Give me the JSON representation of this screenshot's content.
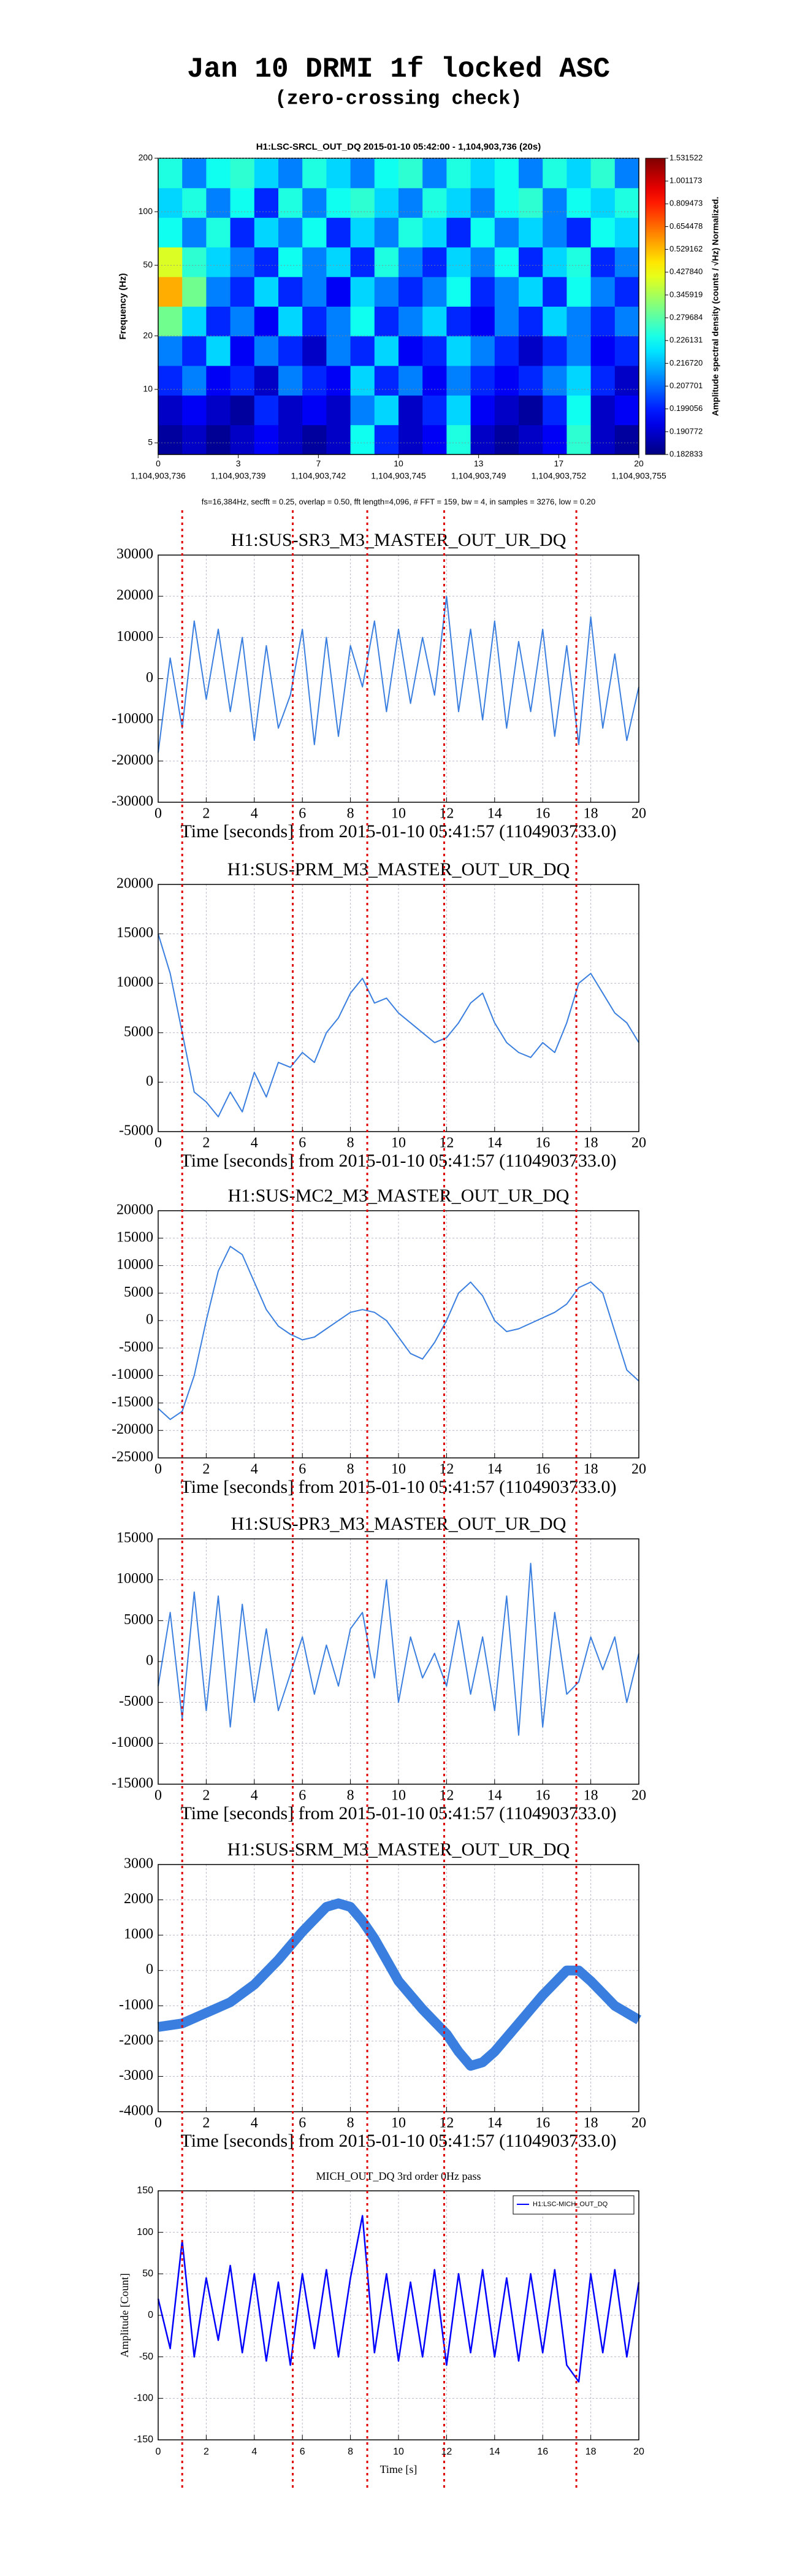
{
  "title": "Jan 10 DRMI 1f locked ASC",
  "subtitle": "(zero-crossing check)",
  "zero_crossings": [
    1.0,
    5.6,
    8.7,
    11.9,
    17.4
  ],
  "chart_data": [
    {
      "type": "heatmap",
      "title": "H1:LSC-SRCL_OUT_DQ 2015-01-10 05:42:00 - 1,104,903,736 (20s)",
      "ylabel": "Frequency (Hz)",
      "colorbar_label": "Amplitude spectral density (counts / √Hz) Normalized.",
      "note": "fs=16,384Hz, secfft = 0.25, overlap = 0.50, fft length=4,096, # FFT = 159, bw = 4, in samples = 3276, low = 0.20",
      "colormap": "jet",
      "ylog": true,
      "xlim": [
        0,
        20
      ],
      "ylim": [
        4.3,
        200
      ],
      "xticks": [
        0,
        {
          "value": 3.333,
          "label": "3"
        },
        {
          "value": 6.667,
          "label": "7"
        },
        10,
        {
          "value": 13.333,
          "label": "13"
        },
        {
          "value": 16.667,
          "label": "17"
        },
        20
      ],
      "xticks2": [
        {
          "value": 0,
          "label": "1,104,903,736"
        },
        {
          "value": 3.333,
          "label": "1,104,903,739"
        },
        {
          "value": 6.667,
          "label": "1,104,903,742"
        },
        {
          "value": 10,
          "label": "1,104,903,745"
        },
        {
          "value": 13.333,
          "label": "1,104,903,749"
        },
        {
          "value": 16.667,
          "label": "1,104,903,752"
        },
        {
          "value": 20,
          "label": "1,104,903,755"
        }
      ],
      "yticks": [
        5,
        10,
        20,
        50,
        100,
        200
      ],
      "zticks": [
        1.531522,
        1.001173,
        0.809473,
        0.654478,
        0.529162,
        0.42784,
        0.345919,
        0.279684,
        0.226131,
        0.21672,
        0.207701,
        0.199056,
        0.190772,
        0.182833
      ],
      "zlabels": [
        "1.531522",
        "1.001173",
        "0.809473",
        "0.654478",
        "0.529162",
        "0.427840",
        "0.345919",
        "0.279684",
        "0.226131",
        "0.216720",
        "0.207701",
        "0.199056",
        "0.190772",
        "0.182833"
      ],
      "values": [
        [
          0.186,
          0.19,
          0.185,
          0.19,
          0.195,
          0.19,
          0.186,
          0.19,
          0.23,
          0.2,
          0.19,
          0.195,
          0.24,
          0.19,
          0.186,
          0.19,
          0.195,
          0.25,
          0.19,
          0.186
        ],
        [
          0.19,
          0.195,
          0.19,
          0.186,
          0.2,
          0.19,
          0.195,
          0.19,
          0.21,
          0.22,
          0.19,
          0.2,
          0.22,
          0.195,
          0.19,
          0.186,
          0.2,
          0.23,
          0.19,
          0.195
        ],
        [
          0.2,
          0.21,
          0.195,
          0.2,
          0.19,
          0.21,
          0.2,
          0.195,
          0.22,
          0.2,
          0.21,
          0.195,
          0.21,
          0.2,
          0.195,
          0.2,
          0.21,
          0.22,
          0.2,
          0.19
        ],
        [
          0.21,
          0.2,
          0.22,
          0.195,
          0.21,
          0.2,
          0.19,
          0.21,
          0.2,
          0.22,
          0.195,
          0.2,
          0.22,
          0.21,
          0.2,
          0.19,
          0.2,
          0.21,
          0.195,
          0.2
        ],
        [
          0.3,
          0.22,
          0.2,
          0.21,
          0.195,
          0.22,
          0.2,
          0.21,
          0.23,
          0.2,
          0.21,
          0.22,
          0.2,
          0.195,
          0.21,
          0.2,
          0.22,
          0.21,
          0.2,
          0.21
        ],
        [
          0.55,
          0.3,
          0.21,
          0.2,
          0.22,
          0.2,
          0.21,
          0.195,
          0.22,
          0.21,
          0.2,
          0.21,
          0.23,
          0.2,
          0.21,
          0.22,
          0.2,
          0.23,
          0.21,
          0.2
        ],
        [
          0.4,
          0.25,
          0.22,
          0.21,
          0.2,
          0.23,
          0.21,
          0.22,
          0.2,
          0.24,
          0.21,
          0.2,
          0.22,
          0.21,
          0.23,
          0.2,
          0.22,
          0.24,
          0.2,
          0.21
        ],
        [
          0.23,
          0.21,
          0.24,
          0.2,
          0.22,
          0.21,
          0.23,
          0.2,
          0.22,
          0.21,
          0.24,
          0.22,
          0.2,
          0.23,
          0.21,
          0.22,
          0.21,
          0.2,
          0.23,
          0.22
        ],
        [
          0.22,
          0.24,
          0.21,
          0.23,
          0.2,
          0.24,
          0.21,
          0.23,
          0.25,
          0.22,
          0.21,
          0.24,
          0.22,
          0.21,
          0.23,
          0.25,
          0.21,
          0.23,
          0.22,
          0.24
        ],
        [
          0.24,
          0.21,
          0.23,
          0.25,
          0.22,
          0.21,
          0.24,
          0.22,
          0.21,
          0.23,
          0.25,
          0.21,
          0.24,
          0.22,
          0.23,
          0.21,
          0.24,
          0.22,
          0.25,
          0.21
        ]
      ]
    },
    {
      "type": "line",
      "title": "H1:SUS-SR3_M3_MASTER_OUT_UR_DQ",
      "xlabel": "Time [seconds] from 2015-01-10 05:41:57 (1104903733.0)",
      "color": "#3a7fe0",
      "grid": true,
      "xlim": [
        0,
        20
      ],
      "xticks": [
        0,
        2,
        4,
        6,
        8,
        10,
        12,
        14,
        16,
        18,
        20
      ],
      "ylim": [
        -30000,
        30000
      ],
      "yticks": [
        -30000,
        -20000,
        -10000,
        0,
        10000,
        20000,
        30000
      ],
      "x": [
        0,
        0.5,
        1,
        1.5,
        2,
        2.5,
        3,
        3.5,
        4,
        4.5,
        5,
        5.5,
        6,
        6.5,
        7,
        7.5,
        8,
        8.5,
        9,
        9.5,
        10,
        10.5,
        11,
        11.5,
        12,
        12.5,
        13,
        13.5,
        14,
        14.5,
        15,
        15.5,
        16,
        16.5,
        17,
        17.5,
        18,
        18.5,
        19,
        19.5,
        20
      ],
      "values": [
        -18000,
        5000,
        -12000,
        14000,
        -5000,
        12000,
        -8000,
        10000,
        -15000,
        8000,
        -12000,
        -4000,
        12000,
        -16000,
        10000,
        -14000,
        8000,
        -2000,
        14000,
        -8000,
        12000,
        -6000,
        10000,
        -4000,
        20000,
        -8000,
        12000,
        -10000,
        14000,
        -12000,
        9000,
        -8000,
        12000,
        -14000,
        8000,
        -16000,
        15000,
        -12000,
        6000,
        -15000,
        -2000
      ]
    },
    {
      "type": "line",
      "title": "H1:SUS-PRM_M3_MASTER_OUT_UR_DQ",
      "xlabel": "Time [seconds] from 2015-01-10 05:41:57 (1104903733.0)",
      "color": "#3a7fe0",
      "grid": true,
      "xlim": [
        0,
        20
      ],
      "xticks": [
        0,
        2,
        4,
        6,
        8,
        10,
        12,
        14,
        16,
        18,
        20
      ],
      "ylim": [
        -5000,
        20000
      ],
      "yticks": [
        -5000,
        0,
        5000,
        10000,
        15000,
        20000
      ],
      "x": [
        0,
        0.5,
        1,
        1.5,
        2,
        2.5,
        3,
        3.5,
        4,
        4.5,
        5,
        5.5,
        6,
        6.5,
        7,
        7.5,
        8,
        8.5,
        9,
        9.5,
        10,
        10.5,
        11,
        11.5,
        12,
        12.5,
        13,
        13.5,
        14,
        14.5,
        15,
        15.5,
        16,
        16.5,
        17,
        17.5,
        18,
        18.5,
        19,
        19.5,
        20
      ],
      "values": [
        15000,
        11000,
        5000,
        -1000,
        -2000,
        -3500,
        -1000,
        -3000,
        1000,
        -1500,
        2000,
        1500,
        3000,
        2000,
        5000,
        6500,
        9000,
        10500,
        8000,
        8500,
        7000,
        6000,
        5000,
        4000,
        4500,
        6000,
        8000,
        9000,
        6000,
        4000,
        3000,
        2500,
        4000,
        3000,
        6000,
        10000,
        11000,
        9000,
        7000,
        6000,
        4000
      ]
    },
    {
      "type": "line",
      "title": "H1:SUS-MC2_M3_MASTER_OUT_UR_DQ",
      "xlabel": "Time [seconds] from 2015-01-10 05:41:57 (1104903733.0)",
      "color": "#3a7fe0",
      "grid": true,
      "xlim": [
        0,
        20
      ],
      "xticks": [
        0,
        2,
        4,
        6,
        8,
        10,
        12,
        14,
        16,
        18,
        20
      ],
      "ylim": [
        -25000,
        20000
      ],
      "yticks": [
        -25000,
        -20000,
        -15000,
        -10000,
        -5000,
        0,
        5000,
        10000,
        15000,
        20000
      ],
      "x": [
        0,
        0.5,
        1,
        1.5,
        2,
        2.5,
        3,
        3.5,
        4,
        4.5,
        5,
        5.5,
        6,
        6.5,
        7,
        7.5,
        8,
        8.5,
        9,
        9.5,
        10,
        10.5,
        11,
        11.5,
        12,
        12.5,
        13,
        13.5,
        14,
        14.5,
        15,
        15.5,
        16,
        16.5,
        17,
        17.5,
        18,
        18.5,
        19,
        19.5,
        20
      ],
      "values": [
        -16000,
        -18000,
        -16500,
        -10000,
        0,
        9000,
        13500,
        12000,
        7000,
        2000,
        -1000,
        -2500,
        -3500,
        -3000,
        -1500,
        0,
        1500,
        2000,
        1500,
        0,
        -3000,
        -6000,
        -7000,
        -4000,
        0,
        5000,
        7000,
        4500,
        0,
        -2000,
        -1500,
        -500,
        500,
        1500,
        3000,
        6000,
        7000,
        5000,
        -2000,
        -9000,
        -11000
      ]
    },
    {
      "type": "line",
      "title": "H1:SUS-PR3_M3_MASTER_OUT_UR_DQ",
      "xlabel": "Time [seconds] from 2015-01-10 05:41:57 (1104903733.0)",
      "color": "#3a7fe0",
      "grid": true,
      "xlim": [
        0,
        20
      ],
      "xticks": [
        0,
        2,
        4,
        6,
        8,
        10,
        12,
        14,
        16,
        18,
        20
      ],
      "ylim": [
        -15000,
        15000
      ],
      "yticks": [
        -15000,
        -10000,
        -5000,
        0,
        5000,
        10000,
        15000
      ],
      "x": [
        0,
        0.5,
        1,
        1.5,
        2,
        2.5,
        3,
        3.5,
        4,
        4.5,
        5,
        5.5,
        6,
        6.5,
        7,
        7.5,
        8,
        8.5,
        9,
        9.5,
        10,
        10.5,
        11,
        11.5,
        12,
        12.5,
        13,
        13.5,
        14,
        14.5,
        15,
        15.5,
        16,
        16.5,
        17,
        17.5,
        18,
        18.5,
        19,
        19.5,
        20
      ],
      "values": [
        -3000,
        6000,
        -7000,
        8500,
        -6000,
        8000,
        -8000,
        7000,
        -5000,
        4000,
        -6000,
        -1500,
        3000,
        -4000,
        2000,
        -3000,
        4000,
        6000,
        -2000,
        10000,
        -5000,
        3000,
        -2000,
        1000,
        -3000,
        5000,
        -4000,
        3000,
        -6000,
        8000,
        -9000,
        12000,
        -8000,
        6000,
        -4000,
        -2500,
        3000,
        -1000,
        3000,
        -5000,
        1000
      ]
    },
    {
      "type": "line",
      "title": "H1:SUS-SRM_M3_MASTER_OUT_UR_DQ",
      "xlabel": "Time [seconds] from 2015-01-10 05:41:57 (1104903733.0)",
      "color": "#3a7fe0",
      "grid": true,
      "band": true,
      "xlim": [
        0,
        20
      ],
      "xticks": [
        0,
        2,
        4,
        6,
        8,
        10,
        12,
        14,
        16,
        18,
        20
      ],
      "ylim": [
        -4000,
        3000
      ],
      "yticks": [
        -4000,
        -3000,
        -2000,
        -1000,
        0,
        1000,
        2000,
        3000
      ],
      "x": [
        0,
        0.5,
        1,
        1.5,
        2,
        2.5,
        3,
        3.5,
        4,
        4.5,
        5,
        5.5,
        6,
        6.5,
        7,
        7.5,
        8,
        8.5,
        9,
        9.5,
        10,
        10.5,
        11,
        11.5,
        12,
        12.5,
        13,
        13.5,
        14,
        14.5,
        15,
        15.5,
        16,
        16.5,
        17,
        17.5,
        18,
        18.5,
        19,
        19.5,
        20
      ],
      "values": [
        -1600,
        -1550,
        -1500,
        -1350,
        -1200,
        -1050,
        -900,
        -650,
        -400,
        -50,
        300,
        700,
        1100,
        1450,
        1800,
        1900,
        1800,
        1400,
        900,
        300,
        -300,
        -700,
        -1100,
        -1450,
        -1800,
        -2300,
        -2700,
        -2600,
        -2300,
        -1900,
        -1500,
        -1100,
        -700,
        -350,
        0,
        0,
        -300,
        -650,
        -1000,
        -1200,
        -1400
      ]
    },
    {
      "type": "line",
      "title": "MICH_OUT_DQ 3rd order 0Hz pass",
      "xlabel": "Time [s]",
      "ylabel": "Amplitude [Count]",
      "grid": true,
      "legend": "upper right",
      "xlim": [
        0,
        20
      ],
      "xticks": [
        0,
        2,
        4,
        6,
        8,
        10,
        12,
        14,
        16,
        18,
        20
      ],
      "ylim": [
        -150,
        150
      ],
      "yticks": [
        -150,
        -100,
        -50,
        0,
        50,
        100,
        150
      ],
      "x": [
        0,
        0.5,
        1,
        1.5,
        2,
        2.5,
        3,
        3.5,
        4,
        4.5,
        5,
        5.5,
        6,
        6.5,
        7,
        7.5,
        8,
        8.5,
        9,
        9.5,
        10,
        10.5,
        11,
        11.5,
        12,
        12.5,
        13,
        13.5,
        14,
        14.5,
        15,
        15.5,
        16,
        16.5,
        17,
        17.5,
        18,
        18.5,
        19,
        19.5,
        20
      ],
      "series": [
        {
          "name": "H1:LSC-MICH_OUT_DQ",
          "color": "#0000ff",
          "values": [
            20,
            -40,
            90,
            -50,
            45,
            -30,
            60,
            -45,
            50,
            -55,
            40,
            -60,
            50,
            -40,
            55,
            -50,
            45,
            120,
            -45,
            50,
            -55,
            40,
            -50,
            55,
            -60,
            50,
            -45,
            55,
            -50,
            45,
            -55,
            50,
            -45,
            55,
            -60,
            -80,
            50,
            -45,
            55,
            -50,
            40
          ]
        }
      ]
    }
  ]
}
